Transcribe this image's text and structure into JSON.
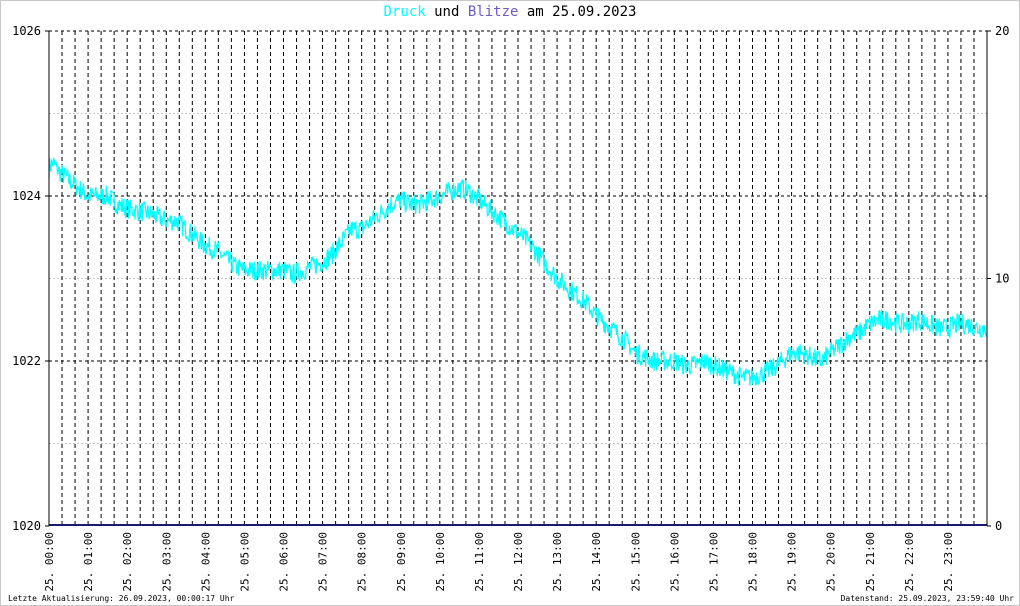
{
  "title": {
    "series1": "Druck",
    "conj": "und",
    "series2": "Blitze",
    "date_prefix": "am 25.09.2023"
  },
  "footer": {
    "left": "Letzte Aktualisierung: 26.09.2023, 00:00:17 Uhr",
    "right": "Datenstand: 25.09.2023, 23:59:40 Uhr"
  },
  "colors": {
    "pressure": "#00ffff",
    "lightning": "#191970",
    "title_blitze": "#6a5acd",
    "grid": "#000000",
    "minor_grid": "#c8c8c8"
  },
  "chart_data": {
    "type": "line",
    "title": "Druck und Blitze am 25.09.2023",
    "y_left": {
      "min": 1020,
      "max": 1026,
      "ticks": [
        "1020",
        "1022",
        "1024",
        "1026"
      ]
    },
    "y_right": {
      "min": 0,
      "max": 20,
      "ticks": [
        "0",
        "10",
        "20"
      ]
    },
    "x_ticks": [
      "25. 00:00",
      "25. 01:00",
      "25. 02:00",
      "25. 03:00",
      "25. 04:00",
      "25. 05:00",
      "25. 06:00",
      "25. 07:00",
      "25. 08:00",
      "25. 09:00",
      "25. 10:00",
      "25. 11:00",
      "25. 12:00",
      "25. 13:00",
      "25. 14:00",
      "25. 15:00",
      "25. 16:00",
      "25. 17:00",
      "25. 18:00",
      "25. 19:00",
      "25. 20:00",
      "25. 21:00",
      "25. 22:00",
      "25. 23:00"
    ],
    "grid": true,
    "series": [
      {
        "name": "Druck",
        "axis": "left",
        "x_hours": [
          0,
          0.1,
          0.25,
          0.5,
          0.75,
          1,
          1.25,
          1.5,
          1.75,
          2,
          2.25,
          2.5,
          2.75,
          3,
          3.25,
          3.5,
          3.75,
          4,
          4.25,
          4.5,
          4.75,
          5,
          5.25,
          5.5,
          5.75,
          6,
          6.25,
          6.5,
          6.75,
          7,
          7.25,
          7.5,
          7.75,
          8,
          8.25,
          8.5,
          8.75,
          9,
          9.25,
          9.5,
          9.75,
          10,
          10.25,
          10.5,
          10.75,
          11,
          11.25,
          11.5,
          11.75,
          12,
          12.25,
          12.5,
          12.75,
          13,
          13.25,
          13.5,
          13.75,
          14,
          14.25,
          14.5,
          14.75,
          15,
          15.25,
          15.5,
          15.75,
          16,
          16.25,
          16.5,
          16.75,
          17,
          17.25,
          17.5,
          17.75,
          18,
          18.25,
          18.5,
          18.75,
          19,
          19.25,
          19.5,
          19.75,
          20,
          20.25,
          20.5,
          20.75,
          21,
          21.25,
          21.5,
          21.75,
          22,
          22.25,
          22.5,
          22.75,
          23,
          23.25,
          23.5,
          23.75,
          24
        ],
        "values": [
          1024.35,
          1024.4,
          1024.3,
          1024.2,
          1024.1,
          1024.0,
          1024.0,
          1024.0,
          1023.9,
          1023.85,
          1023.82,
          1023.8,
          1023.75,
          1023.7,
          1023.7,
          1023.6,
          1023.5,
          1023.4,
          1023.35,
          1023.25,
          1023.15,
          1023.1,
          1023.1,
          1023.1,
          1023.1,
          1023.1,
          1023.05,
          1023.1,
          1023.15,
          1023.2,
          1023.3,
          1023.45,
          1023.6,
          1023.6,
          1023.7,
          1023.8,
          1023.9,
          1023.95,
          1023.9,
          1023.9,
          1023.95,
          1024.0,
          1024.05,
          1024.1,
          1024.05,
          1023.95,
          1023.85,
          1023.75,
          1023.65,
          1023.55,
          1023.45,
          1023.3,
          1023.15,
          1023.0,
          1022.9,
          1022.8,
          1022.7,
          1022.55,
          1022.45,
          1022.35,
          1022.25,
          1022.1,
          1022.05,
          1022.0,
          1022.0,
          1022.0,
          1021.95,
          1021.95,
          1022.0,
          1021.95,
          1021.9,
          1021.85,
          1021.8,
          1021.8,
          1021.85,
          1021.9,
          1022.0,
          1022.1,
          1022.1,
          1022.05,
          1022.0,
          1022.1,
          1022.2,
          1022.3,
          1022.35,
          1022.45,
          1022.5,
          1022.5,
          1022.45,
          1022.45,
          1022.5,
          1022.45,
          1022.4,
          1022.4,
          1022.45,
          1022.45,
          1022.4,
          1022.4
        ]
      },
      {
        "name": "Blitze",
        "axis": "right",
        "x_hours": [
          0,
          24
        ],
        "values": [
          0,
          0
        ]
      }
    ]
  }
}
